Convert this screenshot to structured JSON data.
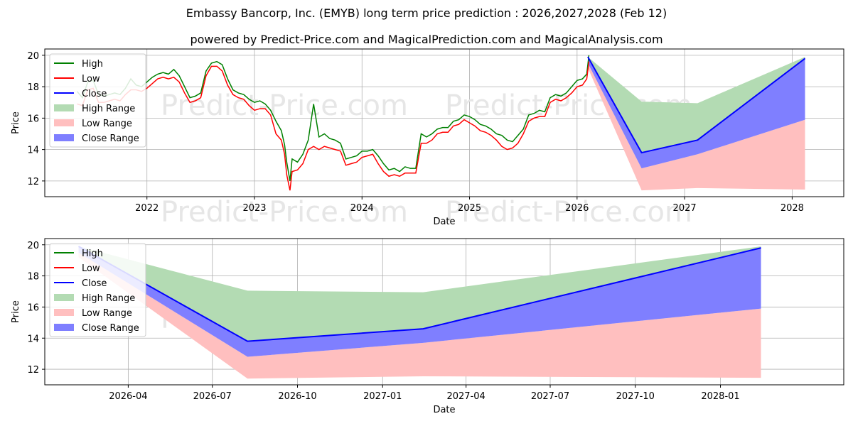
{
  "page": {
    "title": "Embassy Bancorp, Inc. (EMYB) long term price prediction : 2026,2027,2028 (Feb 12)",
    "subtitle": "powered by Predict-Price.com and MagicalPrediction.com and MagicalAnalysis.com",
    "watermark": "Predict-Price.com"
  },
  "colors": {
    "high": "#008000",
    "low": "#ff0000",
    "close": "#0000ff",
    "high_range": "#b3dbb3",
    "low_range": "#ffbfbf",
    "close_range": "#7f7fff",
    "grid": "#b0b0b0",
    "watermark": "#e6e6e6"
  },
  "chart_data": [
    {
      "type": "line",
      "xlabel": "Date",
      "ylabel": "Price",
      "grid": true,
      "legend_position": "top-left",
      "legend": [
        "High",
        "Low",
        "Close",
        "High Range",
        "Low Range",
        "Close Range"
      ],
      "xlim": [
        2021.05,
        2028.48
      ],
      "ylim": [
        11.0,
        20.4
      ],
      "x_ticks": [
        2022,
        2023,
        2024,
        2025,
        2026,
        2027,
        2028
      ],
      "x_tick_labels": [
        "2022",
        "2023",
        "2024",
        "2025",
        "2026",
        "2027",
        "2028"
      ],
      "y_ticks": [
        12,
        14,
        16,
        18,
        20
      ],
      "y_tick_labels": [
        "12",
        "14",
        "16",
        "18",
        "20"
      ],
      "history": {
        "x": [
          2021.35,
          2021.4,
          2021.45,
          2021.5,
          2021.55,
          2021.6,
          2021.65,
          2021.7,
          2021.75,
          2021.8,
          2021.85,
          2021.9,
          2021.95,
          2022.0,
          2022.05,
          2022.1,
          2022.15,
          2022.2,
          2022.25,
          2022.3,
          2022.35,
          2022.4,
          2022.45,
          2022.5,
          2022.55,
          2022.6,
          2022.65,
          2022.7,
          2022.75,
          2022.8,
          2022.85,
          2022.9,
          2022.95,
          2023.0,
          2023.05,
          2023.1,
          2023.15,
          2023.2,
          2023.25,
          2023.28,
          2023.3,
          2023.33,
          2023.35,
          2023.4,
          2023.45,
          2023.5,
          2023.55,
          2023.6,
          2023.65,
          2023.7,
          2023.75,
          2023.8,
          2023.85,
          2023.9,
          2023.95,
          2024.0,
          2024.05,
          2024.1,
          2024.15,
          2024.2,
          2024.25,
          2024.3,
          2024.35,
          2024.4,
          2024.45,
          2024.5,
          2024.55,
          2024.6,
          2024.65,
          2024.7,
          2024.75,
          2024.8,
          2024.85,
          2024.9,
          2024.95,
          2025.0,
          2025.05,
          2025.1,
          2025.15,
          2025.2,
          2025.25,
          2025.3,
          2025.35,
          2025.4,
          2025.45,
          2025.5,
          2025.55,
          2025.6,
          2025.65,
          2025.7,
          2025.75,
          2025.8,
          2025.85,
          2025.9,
          2025.95,
          2026.0,
          2026.05,
          2026.09,
          2026.11
        ],
        "high": [
          17.7,
          17.3,
          18.3,
          18.4,
          17.5,
          17.4,
          17.5,
          17.6,
          17.5,
          17.9,
          18.5,
          18.1,
          18.0,
          18.3,
          18.6,
          18.8,
          18.9,
          18.8,
          19.1,
          18.7,
          18.0,
          17.3,
          17.4,
          17.6,
          19.0,
          19.5,
          19.6,
          19.4,
          18.5,
          17.8,
          17.6,
          17.5,
          17.2,
          17.0,
          17.1,
          16.9,
          16.5,
          15.8,
          15.2,
          14.3,
          13.2,
          12.0,
          13.4,
          13.2,
          13.7,
          14.6,
          16.9,
          14.8,
          15.0,
          14.7,
          14.6,
          14.4,
          13.4,
          13.5,
          13.6,
          13.9,
          13.9,
          14.0,
          13.6,
          13.1,
          12.7,
          12.8,
          12.6,
          12.9,
          12.8,
          12.8,
          15.0,
          14.8,
          15.0,
          15.3,
          15.4,
          15.4,
          15.8,
          15.9,
          16.2,
          16.1,
          15.9,
          15.6,
          15.5,
          15.3,
          15.0,
          14.9,
          14.6,
          14.5,
          14.9,
          15.3,
          16.2,
          16.3,
          16.5,
          16.4,
          17.3,
          17.5,
          17.4,
          17.6,
          18.0,
          18.4,
          18.5,
          18.8,
          20.0
        ],
        "low": [
          16.9,
          16.8,
          17.8,
          17.9,
          17.0,
          17.0,
          17.1,
          17.2,
          17.1,
          17.5,
          17.8,
          17.8,
          17.7,
          17.9,
          18.2,
          18.5,
          18.6,
          18.5,
          18.6,
          18.3,
          17.6,
          17.0,
          17.1,
          17.3,
          18.7,
          19.3,
          19.3,
          19.0,
          18.1,
          17.5,
          17.3,
          17.2,
          16.8,
          16.5,
          16.6,
          16.6,
          16.2,
          15.0,
          14.6,
          13.7,
          12.4,
          11.4,
          12.6,
          12.7,
          13.1,
          14.0,
          14.2,
          14.0,
          14.2,
          14.1,
          14.0,
          13.9,
          13.0,
          13.1,
          13.2,
          13.5,
          13.6,
          13.7,
          13.1,
          12.6,
          12.3,
          12.4,
          12.3,
          12.5,
          12.5,
          12.5,
          14.4,
          14.4,
          14.6,
          15.0,
          15.1,
          15.1,
          15.5,
          15.6,
          15.9,
          15.7,
          15.5,
          15.2,
          15.1,
          14.9,
          14.6,
          14.2,
          14.0,
          14.1,
          14.4,
          15.0,
          15.8,
          16.0,
          16.1,
          16.1,
          17.0,
          17.2,
          17.1,
          17.3,
          17.6,
          18.0,
          18.1,
          18.5,
          19.6
        ]
      },
      "forecast": {
        "x": [
          2026.1,
          2026.6,
          2027.12,
          2028.12
        ],
        "close": [
          19.9,
          13.8,
          14.6,
          19.8
        ],
        "high_range": {
          "upper": [
            19.9,
            17.05,
            16.95,
            19.9
          ],
          "lower": [
            19.6,
            13.8,
            14.6,
            19.8
          ]
        },
        "low_range": {
          "upper": [
            19.5,
            12.8,
            13.7,
            15.9
          ],
          "lower": [
            19.2,
            11.4,
            11.55,
            11.45
          ]
        },
        "close_range": {
          "upper": [
            19.9,
            13.8,
            14.6,
            19.8
          ],
          "lower": [
            19.5,
            12.8,
            13.7,
            15.9
          ]
        }
      }
    },
    {
      "type": "area",
      "xlabel": "Date",
      "ylabel": "Price",
      "grid": true,
      "legend_position": "top-left",
      "legend": [
        "High",
        "Low",
        "Close",
        "High Range",
        "Low Range",
        "Close Range"
      ],
      "xlim": [
        2026.0,
        2028.365
      ],
      "ylim": [
        11.0,
        20.4
      ],
      "x_ticks": [
        2026.247,
        2026.496,
        2026.748,
        2027.0,
        2027.247,
        2027.496,
        2027.748,
        2028.0
      ],
      "x_tick_labels": [
        "2026-04",
        "2026-07",
        "2026-10",
        "2027-01",
        "2027-04",
        "2027-07",
        "2027-10",
        "2028-01"
      ],
      "y_ticks": [
        12,
        14,
        16,
        18,
        20
      ],
      "y_tick_labels": [
        "12",
        "14",
        "16",
        "18",
        "20"
      ],
      "forecast": {
        "x": [
          2026.1,
          2026.6,
          2027.12,
          2028.12
        ],
        "close": [
          19.9,
          13.8,
          14.6,
          19.8
        ],
        "high_range": {
          "upper": [
            19.9,
            17.05,
            16.95,
            19.9
          ],
          "lower": [
            19.6,
            13.8,
            14.6,
            19.8
          ]
        },
        "low_range": {
          "upper": [
            19.5,
            12.8,
            13.7,
            15.9
          ],
          "lower": [
            19.2,
            11.4,
            11.55,
            11.45
          ]
        },
        "close_range": {
          "upper": [
            19.9,
            13.8,
            14.6,
            19.8
          ],
          "lower": [
            19.5,
            12.8,
            13.7,
            15.9
          ]
        }
      }
    }
  ]
}
